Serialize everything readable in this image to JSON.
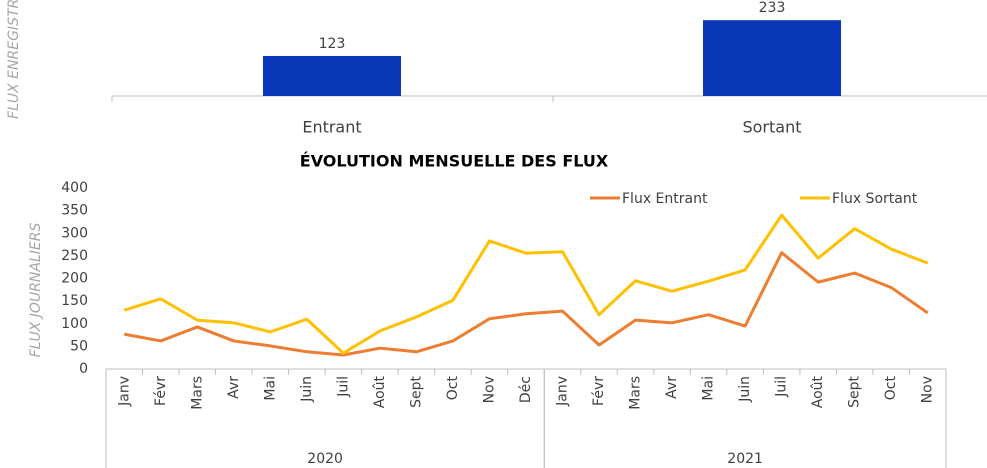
{
  "chart_data": [
    {
      "type": "bar",
      "y_label": "FLUX ENREGISTRES",
      "categories": [
        "Entrant",
        "Sortant"
      ],
      "values": [
        123,
        233
      ],
      "color": "#0a36b8",
      "ylim": [
        0,
        295
      ]
    },
    {
      "type": "line",
      "title": "ÉVOLUTION MENSUELLE DES FLUX",
      "y_label": "FLUX JOURNALIERS",
      "categories": [
        "Janv",
        "Févr",
        "Mars",
        "Avr",
        "Mai",
        "Juin",
        "Juil",
        "Août",
        "Sept",
        "Oct",
        "Nov",
        "Déc",
        "Janv",
        "Févr",
        "Mars",
        "Avr",
        "Mai",
        "Juin",
        "Juil",
        "Août",
        "Sept",
        "Oct",
        "Nov"
      ],
      "groups": [
        {
          "label": "2020",
          "count": 12
        },
        {
          "label": "2021",
          "count": 11
        }
      ],
      "series": [
        {
          "name": "Flux Entrant",
          "color": "#ed7d31",
          "values": [
            77,
            62,
            93,
            62,
            51,
            38,
            31,
            46,
            38,
            62,
            111,
            122,
            128,
            53,
            108,
            102,
            120,
            95,
            257,
            192,
            212,
            180,
            124
          ]
        },
        {
          "name": "Flux Sortant",
          "color": "#ffc000",
          "values": [
            130,
            155,
            108,
            102,
            82,
            110,
            35,
            84,
            115,
            152,
            283,
            256,
            259,
            120,
            195,
            172,
            194,
            219,
            340,
            245,
            310,
            265,
            234
          ]
        }
      ],
      "ylim": [
        0,
        400
      ],
      "yticks": [
        0,
        50,
        100,
        150,
        200,
        250,
        300,
        350,
        400
      ],
      "legend": "top-right"
    }
  ]
}
